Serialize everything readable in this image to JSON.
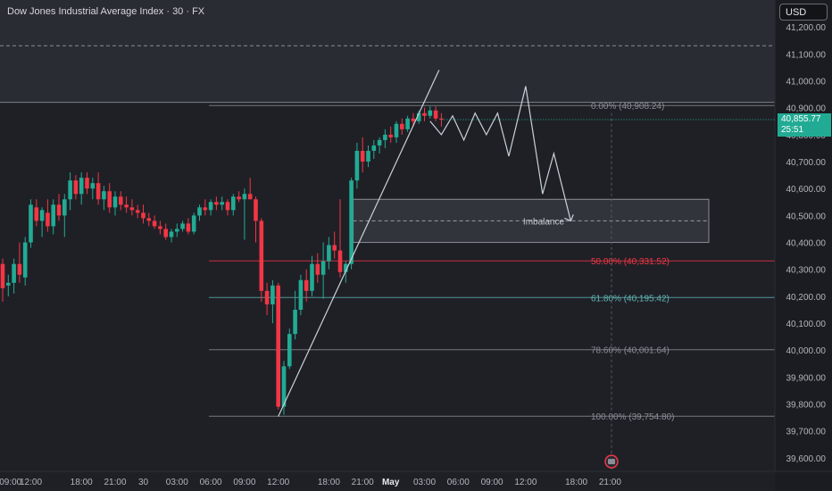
{
  "header": {
    "title": "Dow Jones Industrial Average Index · 30 · FX",
    "currency": "USD"
  },
  "price_badge": {
    "price": "40,855.77",
    "countdown": "25:51"
  },
  "colors": {
    "background": "#1f2026",
    "up": "#22ab94",
    "down": "#f23645",
    "fib_red": "#f23645",
    "fib_teal": "#5fb3b3",
    "fib_gray": "#8a8d96",
    "projection": "#c9d1d9"
  },
  "chart_data": {
    "type": "candlestick",
    "title": "Dow Jones Industrial Average Index · 30 · FX",
    "y_axis": {
      "range": [
        39550,
        41300
      ],
      "position": "right",
      "ticks": [
        41200,
        41100,
        41000,
        40900,
        40800,
        40700,
        40600,
        40500,
        40400,
        40300,
        40200,
        40100,
        40000,
        39900,
        39800,
        39700,
        39600
      ],
      "tick_labels": [
        "41,200.00",
        "41,100.00",
        "41,000.00",
        "40,900.00",
        "40,800.00",
        "40,700.00",
        "40,600.00",
        "40,500.00",
        "40,400.00",
        "40,300.00",
        "40,200.00",
        "40,100.00",
        "40,000.00",
        "39,900.00",
        "39,800.00",
        "39,700.00",
        "39,600.00"
      ]
    },
    "x_axis": {
      "tick_labels": [
        "09:00",
        "12:00",
        "18:00",
        "21:00",
        "30",
        "03:00",
        "06:00",
        "09:00",
        "12:00",
        "18:00",
        "21:00",
        "May",
        "03:00",
        "06:00",
        "09:00",
        "12:00",
        "18:00",
        "21:00"
      ],
      "tick_index": [
        -1,
        5,
        14,
        20,
        25,
        31,
        37,
        43,
        49,
        58,
        64,
        69,
        75,
        81,
        87,
        93,
        102,
        108
      ]
    },
    "grid": false,
    "candles": [
      [
        40320,
        40340,
        40180,
        40230
      ],
      [
        40240,
        40280,
        40200,
        40250
      ],
      [
        40250,
        40340,
        40210,
        40320
      ],
      [
        40320,
        40400,
        40250,
        40280
      ],
      [
        40270,
        40420,
        40240,
        40400
      ],
      [
        40400,
        40560,
        40380,
        40540
      ],
      [
        40530,
        40560,
        40460,
        40480
      ],
      [
        40480,
        40530,
        40420,
        40520
      ],
      [
        40510,
        40560,
        40440,
        40460
      ],
      [
        40460,
        40560,
        40430,
        40540
      ],
      [
        40540,
        40580,
        40480,
        40500
      ],
      [
        40500,
        40580,
        40420,
        40560
      ],
      [
        40560,
        40660,
        40520,
        40630
      ],
      [
        40630,
        40650,
        40560,
        40580
      ],
      [
        40580,
        40660,
        40540,
        40640
      ],
      [
        40640,
        40660,
        40580,
        40600
      ],
      [
        40600,
        40640,
        40560,
        40620
      ],
      [
        40620,
        40660,
        40540,
        40560
      ],
      [
        40560,
        40610,
        40520,
        40590
      ],
      [
        40590,
        40620,
        40510,
        40530
      ],
      [
        40530,
        40590,
        40500,
        40570
      ],
      [
        40570,
        40590,
        40520,
        40540
      ],
      [
        40540,
        40570,
        40510,
        40530
      ],
      [
        40530,
        40560,
        40500,
        40520
      ],
      [
        40520,
        40540,
        40490,
        40510
      ],
      [
        40510,
        40540,
        40470,
        40490
      ],
      [
        40490,
        40510,
        40460,
        40480
      ],
      [
        40480,
        40500,
        40450,
        40460
      ],
      [
        40460,
        40480,
        40430,
        40450
      ],
      [
        40450,
        40470,
        40410,
        40420
      ],
      [
        40420,
        40450,
        40400,
        40440
      ],
      [
        40440,
        40470,
        40420,
        40450
      ],
      [
        40450,
        40480,
        40440,
        40470
      ],
      [
        40470,
        40490,
        40430,
        40440
      ],
      [
        40440,
        40510,
        40430,
        40500
      ],
      [
        40500,
        40540,
        40480,
        40530
      ],
      [
        40530,
        40560,
        40500,
        40520
      ],
      [
        40520,
        40560,
        40500,
        40550
      ],
      [
        40550,
        40570,
        40520,
        40540
      ],
      [
        40540,
        40570,
        40520,
        40550
      ],
      [
        40550,
        40560,
        40500,
        40520
      ],
      [
        40520,
        40580,
        40500,
        40570
      ],
      [
        40570,
        40590,
        40550,
        40560
      ],
      [
        40560,
        40600,
        40410,
        40580
      ],
      [
        40580,
        40640,
        40560,
        40560
      ],
      [
        40560,
        40570,
        40400,
        40480
      ],
      [
        40480,
        40490,
        40180,
        40220
      ],
      [
        40220,
        40250,
        40130,
        40170
      ],
      [
        40170,
        40260,
        40100,
        40240
      ],
      [
        40240,
        40250,
        39780,
        39790
      ],
      [
        39790,
        39960,
        39760,
        39940
      ],
      [
        39940,
        40080,
        39930,
        40060
      ],
      [
        40060,
        40220,
        40040,
        40150
      ],
      [
        40150,
        40280,
        40130,
        40260
      ],
      [
        40260,
        40300,
        40180,
        40220
      ],
      [
        40220,
        40350,
        40200,
        40320
      ],
      [
        40320,
        40360,
        40250,
        40280
      ],
      [
        40280,
        40400,
        40190,
        40330
      ],
      [
        40330,
        40420,
        40300,
        40390
      ],
      [
        40390,
        40440,
        40340,
        40370
      ],
      [
        40370,
        40560,
        40270,
        40290
      ],
      [
        40290,
        40330,
        40250,
        40320
      ],
      [
        40320,
        40640,
        40300,
        40630
      ],
      [
        40630,
        40770,
        40600,
        40740
      ],
      [
        40740,
        40790,
        40660,
        40700
      ],
      [
        40700,
        40760,
        40680,
        40740
      ],
      [
        40740,
        40780,
        40710,
        40760
      ],
      [
        40760,
        40790,
        40730,
        40780
      ],
      [
        40780,
        40820,
        40750,
        40800
      ],
      [
        40800,
        40830,
        40770,
        40790
      ],
      [
        40790,
        40850,
        40770,
        40840
      ],
      [
        40840,
        40860,
        40800,
        40820
      ],
      [
        40820,
        40870,
        40810,
        40860
      ],
      [
        40860,
        40880,
        40830,
        40850
      ],
      [
        40850,
        40890,
        40840,
        40880
      ],
      [
        40880,
        40900,
        40850,
        40870
      ],
      [
        40870,
        40905,
        40860,
        40890
      ],
      [
        40890,
        40905,
        40850,
        40860
      ],
      [
        40860,
        40880,
        40830,
        40856
      ]
    ],
    "last_price": 40855.77,
    "dashed_level": 41130,
    "upper_level": 40920,
    "fibonacci": [
      {
        "label": "0.00% (40,908.24)",
        "value": 40908.24,
        "color": "#8a8d96"
      },
      {
        "label": "50.00% (40,331.52)",
        "value": 40331.52,
        "color": "#f23645"
      },
      {
        "label": "61.80% (40,195.42)",
        "value": 40195.42,
        "color": "#5fb3b3"
      },
      {
        "label": "78.60% (40,001.64)",
        "value": 40001.64,
        "color": "#8a8d96"
      },
      {
        "label": "100.00% (39,754.80)",
        "value": 39754.8,
        "color": "#8a8d96"
      }
    ],
    "imbalance_zone": {
      "label": "Imbalance",
      "top": 40560,
      "bottom": 40400,
      "mid": 40480,
      "from_index": 62
    },
    "trendline": [
      [
        49,
        39754
      ],
      [
        76,
        41000
      ]
    ],
    "projection_path": [
      [
        76,
        40850
      ],
      [
        78,
        40800
      ],
      [
        80,
        40870
      ],
      [
        82,
        40780
      ],
      [
        84,
        40880
      ],
      [
        86,
        40800
      ],
      [
        88,
        40880
      ],
      [
        90,
        40720
      ],
      [
        93,
        40980
      ],
      [
        96,
        40580
      ],
      [
        98,
        40730
      ],
      [
        101,
        40480
      ]
    ]
  }
}
